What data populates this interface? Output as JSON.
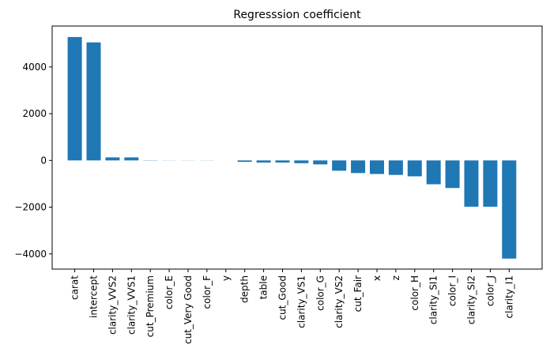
{
  "chart_data": {
    "type": "bar",
    "title": "Regresssion coefficient",
    "xlabel": "",
    "ylabel": "",
    "ylim": [
      -4650,
      5750
    ],
    "yticks": [
      -4000,
      -2000,
      0,
      2000,
      4000
    ],
    "ytick_labels": [
      "−4000",
      "−2000",
      "0",
      "2000",
      "4000"
    ],
    "bar_color": "#1f77b4",
    "grid": false,
    "categories": [
      "carat",
      "intercept",
      "clarity_VVS2",
      "clarity_VVS1",
      "cut_Premium",
      "color_E",
      "cut_Very Good",
      "color_F",
      "y",
      "depth",
      "table",
      "cut_Good",
      "clarity_VS1",
      "color_G",
      "clarity_VS2",
      "cut_Fair",
      "x",
      "z",
      "color_H",
      "clarity_SI1",
      "color_I",
      "clarity_SI2",
      "color_J",
      "clarity_I1"
    ],
    "values": [
      5280,
      5050,
      130,
      130,
      10,
      5,
      5,
      5,
      0,
      -60,
      -90,
      -90,
      -120,
      -170,
      -440,
      -540,
      -580,
      -620,
      -680,
      -1020,
      -1180,
      -1980,
      -1980,
      -4200
    ]
  }
}
